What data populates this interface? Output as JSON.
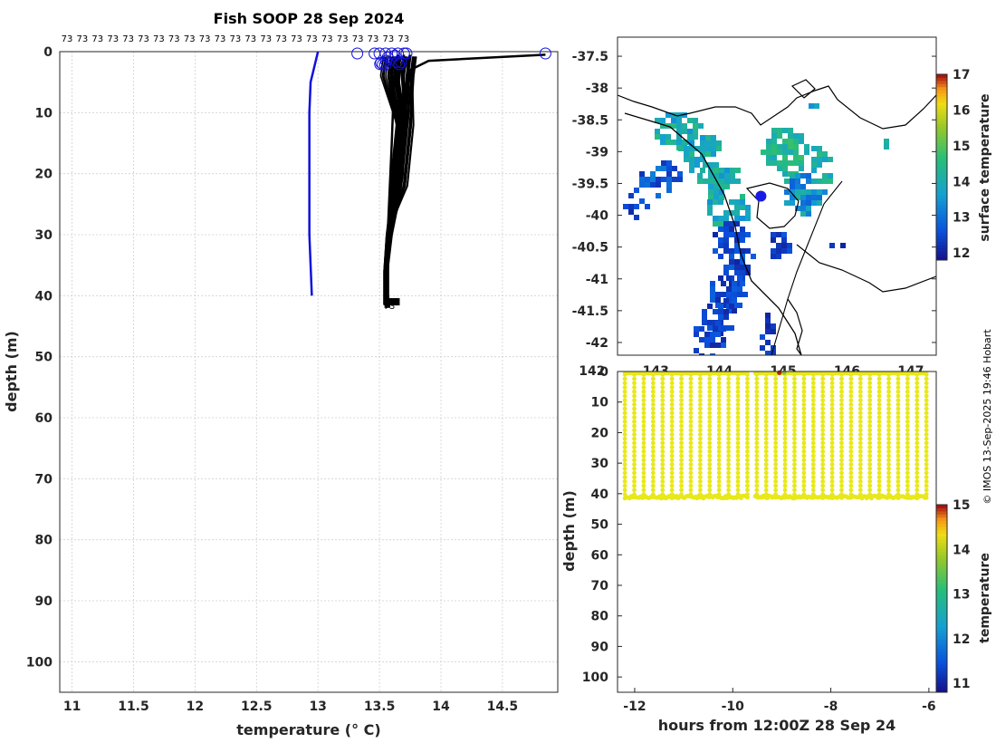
{
  "chart_data": [
    {
      "type": "line",
      "title": "Fish SOOP 28 Sep 2024",
      "xlabel": "temperature (° C)",
      "ylabel": "depth (m)",
      "xlim": [
        10.9,
        14.95
      ],
      "ylim": [
        105,
        0
      ],
      "xticks": [
        "11",
        "11.5",
        "12",
        "12.5",
        "13",
        "13.5",
        "14",
        "14.5"
      ],
      "yticks": [
        "0",
        "10",
        "20",
        "30",
        "40",
        "50",
        "60",
        "70",
        "80",
        "90",
        "100"
      ],
      "grid": true,
      "profile_label": "73",
      "profile_label_count": 23,
      "end_label": "73",
      "series": [
        {
          "color": "#1010dd",
          "x": [
            13.0,
            12.94,
            12.93,
            12.93,
            12.93,
            12.94,
            12.95
          ],
          "y": [
            0,
            5,
            10,
            20,
            30,
            35,
            40
          ]
        },
        {
          "color": "#000000",
          "x": [
            14.85,
            13.9,
            13.75,
            13.7,
            13.69,
            13.65,
            13.6,
            13.57,
            13.57,
            13.58
          ],
          "y": [
            0.5,
            1.5,
            3,
            10,
            20,
            25,
            30,
            35,
            40,
            42
          ]
        },
        {
          "color": "#000000",
          "x": [
            13.75,
            13.7,
            13.68,
            13.62,
            13.58,
            13.56,
            13.56
          ],
          "y": [
            0.5,
            3,
            15,
            25,
            32,
            38,
            42
          ]
        },
        {
          "color": "#000000",
          "x": [
            13.7,
            13.66,
            13.64,
            13.6,
            13.57,
            13.56
          ],
          "y": [
            0.5,
            4,
            15,
            26,
            33,
            42
          ]
        },
        {
          "color": "#000000",
          "x": [
            13.65,
            13.62,
            13.6,
            13.58,
            13.56,
            13.55
          ],
          "y": [
            0.5,
            4,
            15,
            24,
            33,
            42
          ]
        }
      ],
      "surface_markers": {
        "color": "#1010dd",
        "x": [
          13.32,
          13.46,
          13.5,
          13.55,
          13.6,
          13.65,
          13.7,
          13.72,
          14.85
        ]
      }
    },
    {
      "type": "heatmap",
      "colorbar_label": "surface temperature",
      "colorbar_ticks": [
        "12",
        "13",
        "14",
        "15",
        "16",
        "17"
      ],
      "colorbar_range": [
        11.8,
        17
      ],
      "ylim": [
        -42.2,
        -37.2
      ],
      "xlim": [
        142.4,
        147.4
      ],
      "yticks": [
        "-37.5",
        "-38",
        "-38.5",
        "-39",
        "-39.5",
        "-40",
        "-40.5",
        "-41",
        "-41.5",
        "-42"
      ],
      "xticks": [
        "142",
        "143",
        "144",
        "145",
        "146",
        "147"
      ],
      "vessel_position": {
        "lon": 144.65,
        "lat": -39.7
      }
    },
    {
      "type": "scatter",
      "xlabel": "hours from 12:00Z 28 Sep 24",
      "ylabel": "depth (m)",
      "xlim": [
        -12.35,
        -5.85
      ],
      "ylim": [
        105,
        0
      ],
      "xticks": [
        "-12",
        "-10",
        "-8",
        "-6"
      ],
      "yticks": [
        "0",
        "10",
        "20",
        "30",
        "40",
        "50",
        "60",
        "70",
        "80",
        "90",
        "100"
      ],
      "colorbar_label": "temperature",
      "colorbar_ticks": [
        "11",
        "12",
        "13",
        "14",
        "15"
      ],
      "colorbar_range": [
        10.8,
        15
      ],
      "casts": 33,
      "cast_start": -12.2,
      "cast_end": -6.05,
      "max_depth": 41.5,
      "point_color": "#e8e81a",
      "gap": [
        -9.7,
        -9.55
      ]
    }
  ],
  "credit": "© IMOS 13-Sep-2025 19:46 Hobart"
}
